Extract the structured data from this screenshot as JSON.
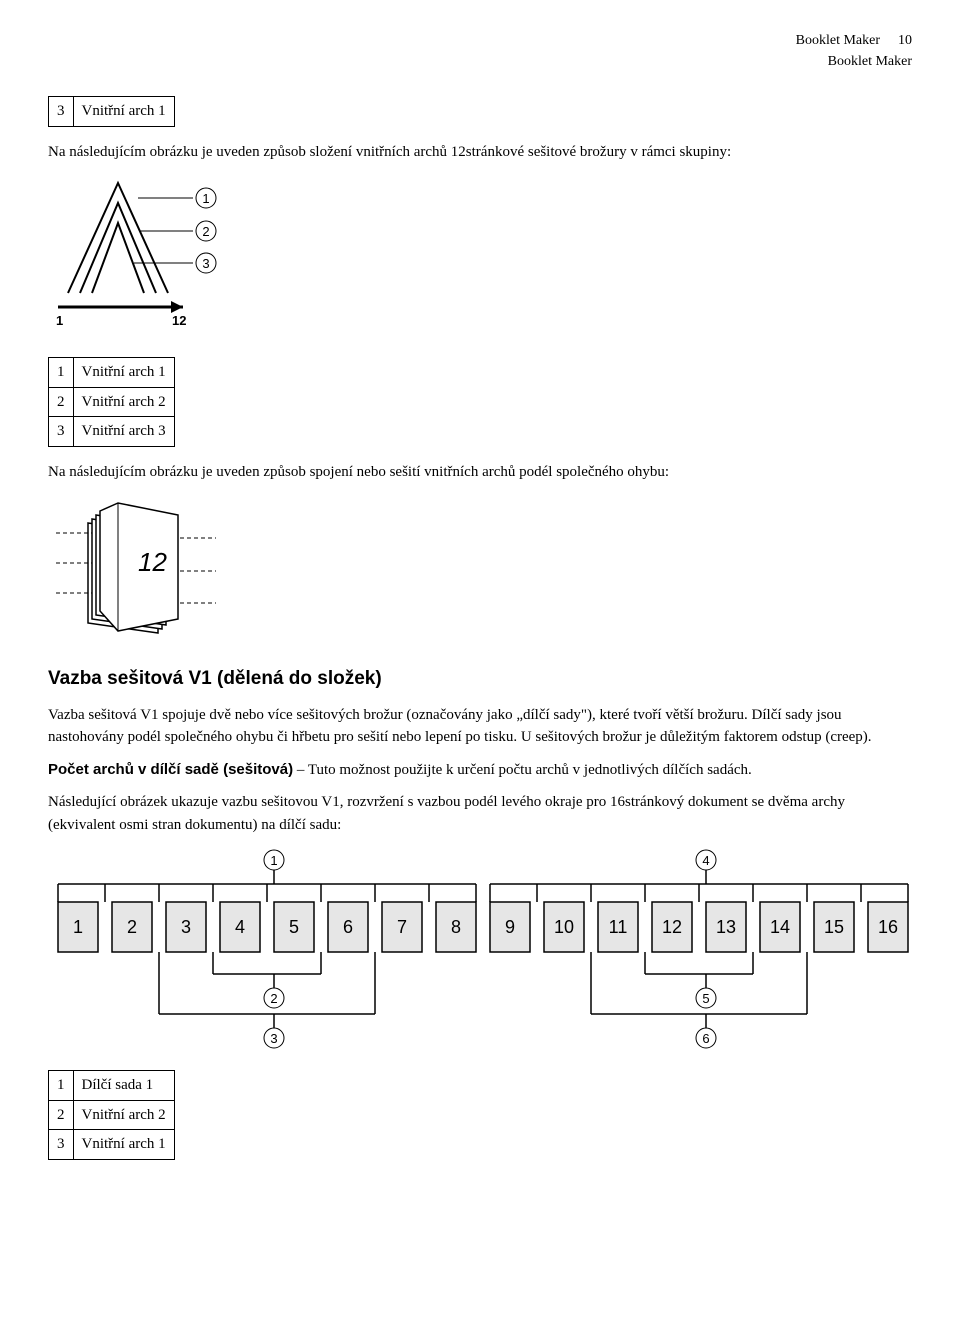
{
  "header": {
    "title1": "Booklet Maker",
    "title2": "Booklet Maker",
    "page": "10"
  },
  "table_top": {
    "rows": [
      [
        "3",
        "Vnitřní arch 1"
      ]
    ]
  },
  "para1": "Na následujícím obrázku je uveden způsob složení vnitřních archů 12stránkové sešitové brožury v rámci skupiny:",
  "fig_nested": {
    "callouts": [
      "1",
      "2",
      "3"
    ],
    "xaxis_left": "1",
    "xaxis_right": "12",
    "stroke": "#000000",
    "fill": "#ffffff"
  },
  "table_mid": {
    "rows": [
      [
        "1",
        "Vnitřní arch 1"
      ],
      [
        "2",
        "Vnitřní arch 2"
      ],
      [
        "3",
        "Vnitřní arch 3"
      ]
    ]
  },
  "para2": "Na následujícím obrázku je uveden způsob spojení nebo sešití vnitřních archů podél společného ohybu:",
  "fig_book": {
    "page_label": "12",
    "stroke": "#000000"
  },
  "section_heading": "Vazba sešitová V1 (dělená do složek)",
  "para3": "Vazba sešitová V1 spojuje dvě nebo více sešitových brožur (označovány jako „dílčí sady\"), které tvoří větší brožuru. Dílčí sady jsou nastohovány podél společného ohybu či hřbetu pro sešití nebo lepení po tisku. U sešitových brožur je důležitým faktorem odstup (creep).",
  "para4_label": "Počet archů v dílčí sadě (sešitová)",
  "para4_rest": " – Tuto možnost použijte k určení počtu archů v jednotlivých dílčích sadách.",
  "para5": "Následující obrázek ukazuje vazbu sešitovou V1, rozvržení s vazbou podél levého okraje pro 16stránkový dokument se dvěma archy (ekvivalent osmi stran dokumentu) na dílčí sadu:",
  "fig_signature": {
    "pages": [
      "1",
      "2",
      "3",
      "4",
      "5",
      "6",
      "7",
      "8",
      "9",
      "10",
      "11",
      "12",
      "13",
      "14",
      "15",
      "16"
    ],
    "callouts": [
      "1",
      "2",
      "3",
      "4",
      "5",
      "6"
    ],
    "box_fill": "#e6e6e6",
    "box_stroke": "#000000",
    "line_stroke": "#000000"
  },
  "table_bottom": {
    "rows": [
      [
        "1",
        "Dílčí sada 1"
      ],
      [
        "2",
        "Vnitřní arch 2"
      ],
      [
        "3",
        "Vnitřní arch 1"
      ]
    ]
  }
}
